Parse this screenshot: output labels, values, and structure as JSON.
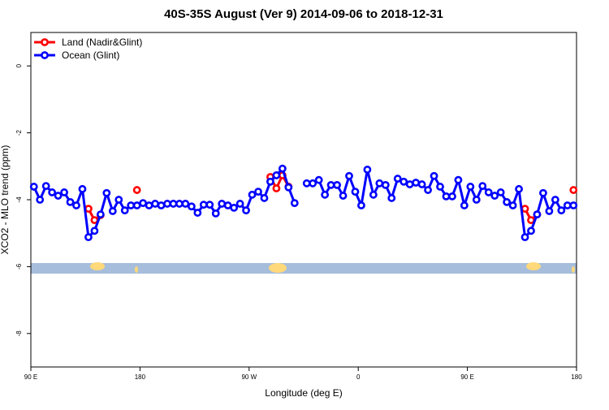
{
  "chart_data": {
    "type": "line",
    "title": "40S-35S August (Ver 9)   2014-09-06 to 2018-12-31",
    "x_label": "Longitude (deg E)",
    "y_label": "XCO2 - MLO trend (ppm)",
    "x": [
      92.5,
      97.5,
      102.5,
      107.5,
      112.5,
      117.5,
      122.5,
      127.5,
      132.5,
      137.5,
      142.5,
      147.5,
      152.5,
      157.5,
      162.5,
      167.5,
      172.5,
      177.5,
      182.5,
      187.5,
      192.5,
      197.5,
      202.5,
      207.5,
      212.5,
      217.5,
      222.5,
      227.5,
      232.5,
      237.5,
      242.5,
      247.5,
      252.5,
      257.5,
      262.5,
      267.5,
      272.5,
      277.5,
      282.5,
      287.5,
      292.5,
      297.5,
      302.5,
      307.5,
      312.5,
      317.5,
      322.5,
      327.5,
      332.5,
      337.5,
      342.5,
      347.5,
      352.5,
      357.5,
      362.5,
      367.5,
      372.5,
      377.5,
      382.5,
      387.5,
      392.5,
      397.5,
      402.5,
      407.5,
      412.5,
      417.5,
      422.5,
      427.5,
      432.5,
      437.5,
      442.5,
      447.5,
      452.5,
      457.5,
      462.5,
      467.5,
      472.5,
      477.5,
      482.5,
      487.5,
      492.5,
      497.5,
      502.5,
      507.5,
      512.5,
      517.5,
      522.5,
      527.5,
      532.5,
      537.5
    ],
    "series": [
      {
        "name": "Land (Nadir&Glint)",
        "color": "#ff0000",
        "values": [
          null,
          null,
          null,
          null,
          null,
          null,
          null,
          null,
          null,
          -4.27,
          -4.61,
          -4.46,
          null,
          null,
          null,
          null,
          null,
          -3.71,
          null,
          null,
          null,
          null,
          null,
          null,
          null,
          null,
          null,
          null,
          null,
          null,
          null,
          null,
          null,
          null,
          null,
          null,
          null,
          null,
          null,
          -3.32,
          -3.66,
          -3.27,
          -3.61,
          null,
          null,
          null,
          null,
          null,
          null,
          null,
          null,
          null,
          null,
          null,
          null,
          null,
          null,
          null,
          null,
          null,
          null,
          null,
          null,
          null,
          null,
          null,
          null,
          null,
          null,
          null,
          null,
          null,
          null,
          null,
          null,
          null,
          null,
          null,
          null,
          null,
          null,
          -4.27,
          -4.61,
          -4.44,
          null,
          null,
          null,
          null,
          null,
          -3.71
        ]
      },
      {
        "name": "Ocean (Glint)",
        "color": "#0000ff",
        "values": [
          -3.61,
          -4.0,
          -3.59,
          -3.78,
          -3.88,
          -3.78,
          -4.07,
          -4.17,
          -3.68,
          -5.12,
          -4.93,
          -4.44,
          -3.8,
          -4.34,
          -4.0,
          -4.32,
          -4.17,
          -4.17,
          -4.1,
          -4.17,
          -4.12,
          -4.17,
          -4.12,
          -4.12,
          -4.12,
          -4.12,
          -4.2,
          -4.39,
          -4.15,
          -4.15,
          -4.41,
          -4.12,
          -4.17,
          -4.24,
          -4.12,
          -4.32,
          -3.85,
          -3.76,
          -3.95,
          -3.46,
          -3.27,
          -3.07,
          -3.63,
          -4.1,
          null,
          -3.51,
          -3.51,
          -3.41,
          -3.85,
          -3.56,
          -3.56,
          -3.88,
          -3.29,
          -3.76,
          -4.17,
          -3.1,
          -3.85,
          -3.51,
          -3.56,
          -3.95,
          -3.37,
          -3.46,
          -3.54,
          -3.49,
          -3.54,
          -3.71,
          -3.29,
          -3.61,
          -3.9,
          -3.9,
          -3.41,
          -4.17,
          -3.61,
          -4.0,
          -3.59,
          -3.78,
          -3.88,
          -3.78,
          -4.07,
          -4.17,
          -3.68,
          -5.12,
          -4.93,
          -4.44,
          -3.8,
          -4.34,
          -4.0,
          -4.32,
          -4.17,
          -4.17
        ]
      }
    ],
    "xlim": [
      90,
      540
    ],
    "xticks": [
      {
        "value": 90,
        "label": "90 E"
      },
      180,
      {
        "value": 270,
        "label": "90 W"
      },
      {
        "value": 360,
        "label": "0"
      },
      {
        "value": 450,
        "label": "90 E"
      },
      {
        "value": 540,
        "label": "180"
      }
    ],
    "ylim": [
      -9,
      1
    ],
    "yticks": [
      0,
      -2,
      -4,
      -6,
      -8
    ],
    "legend": "top-left"
  }
}
